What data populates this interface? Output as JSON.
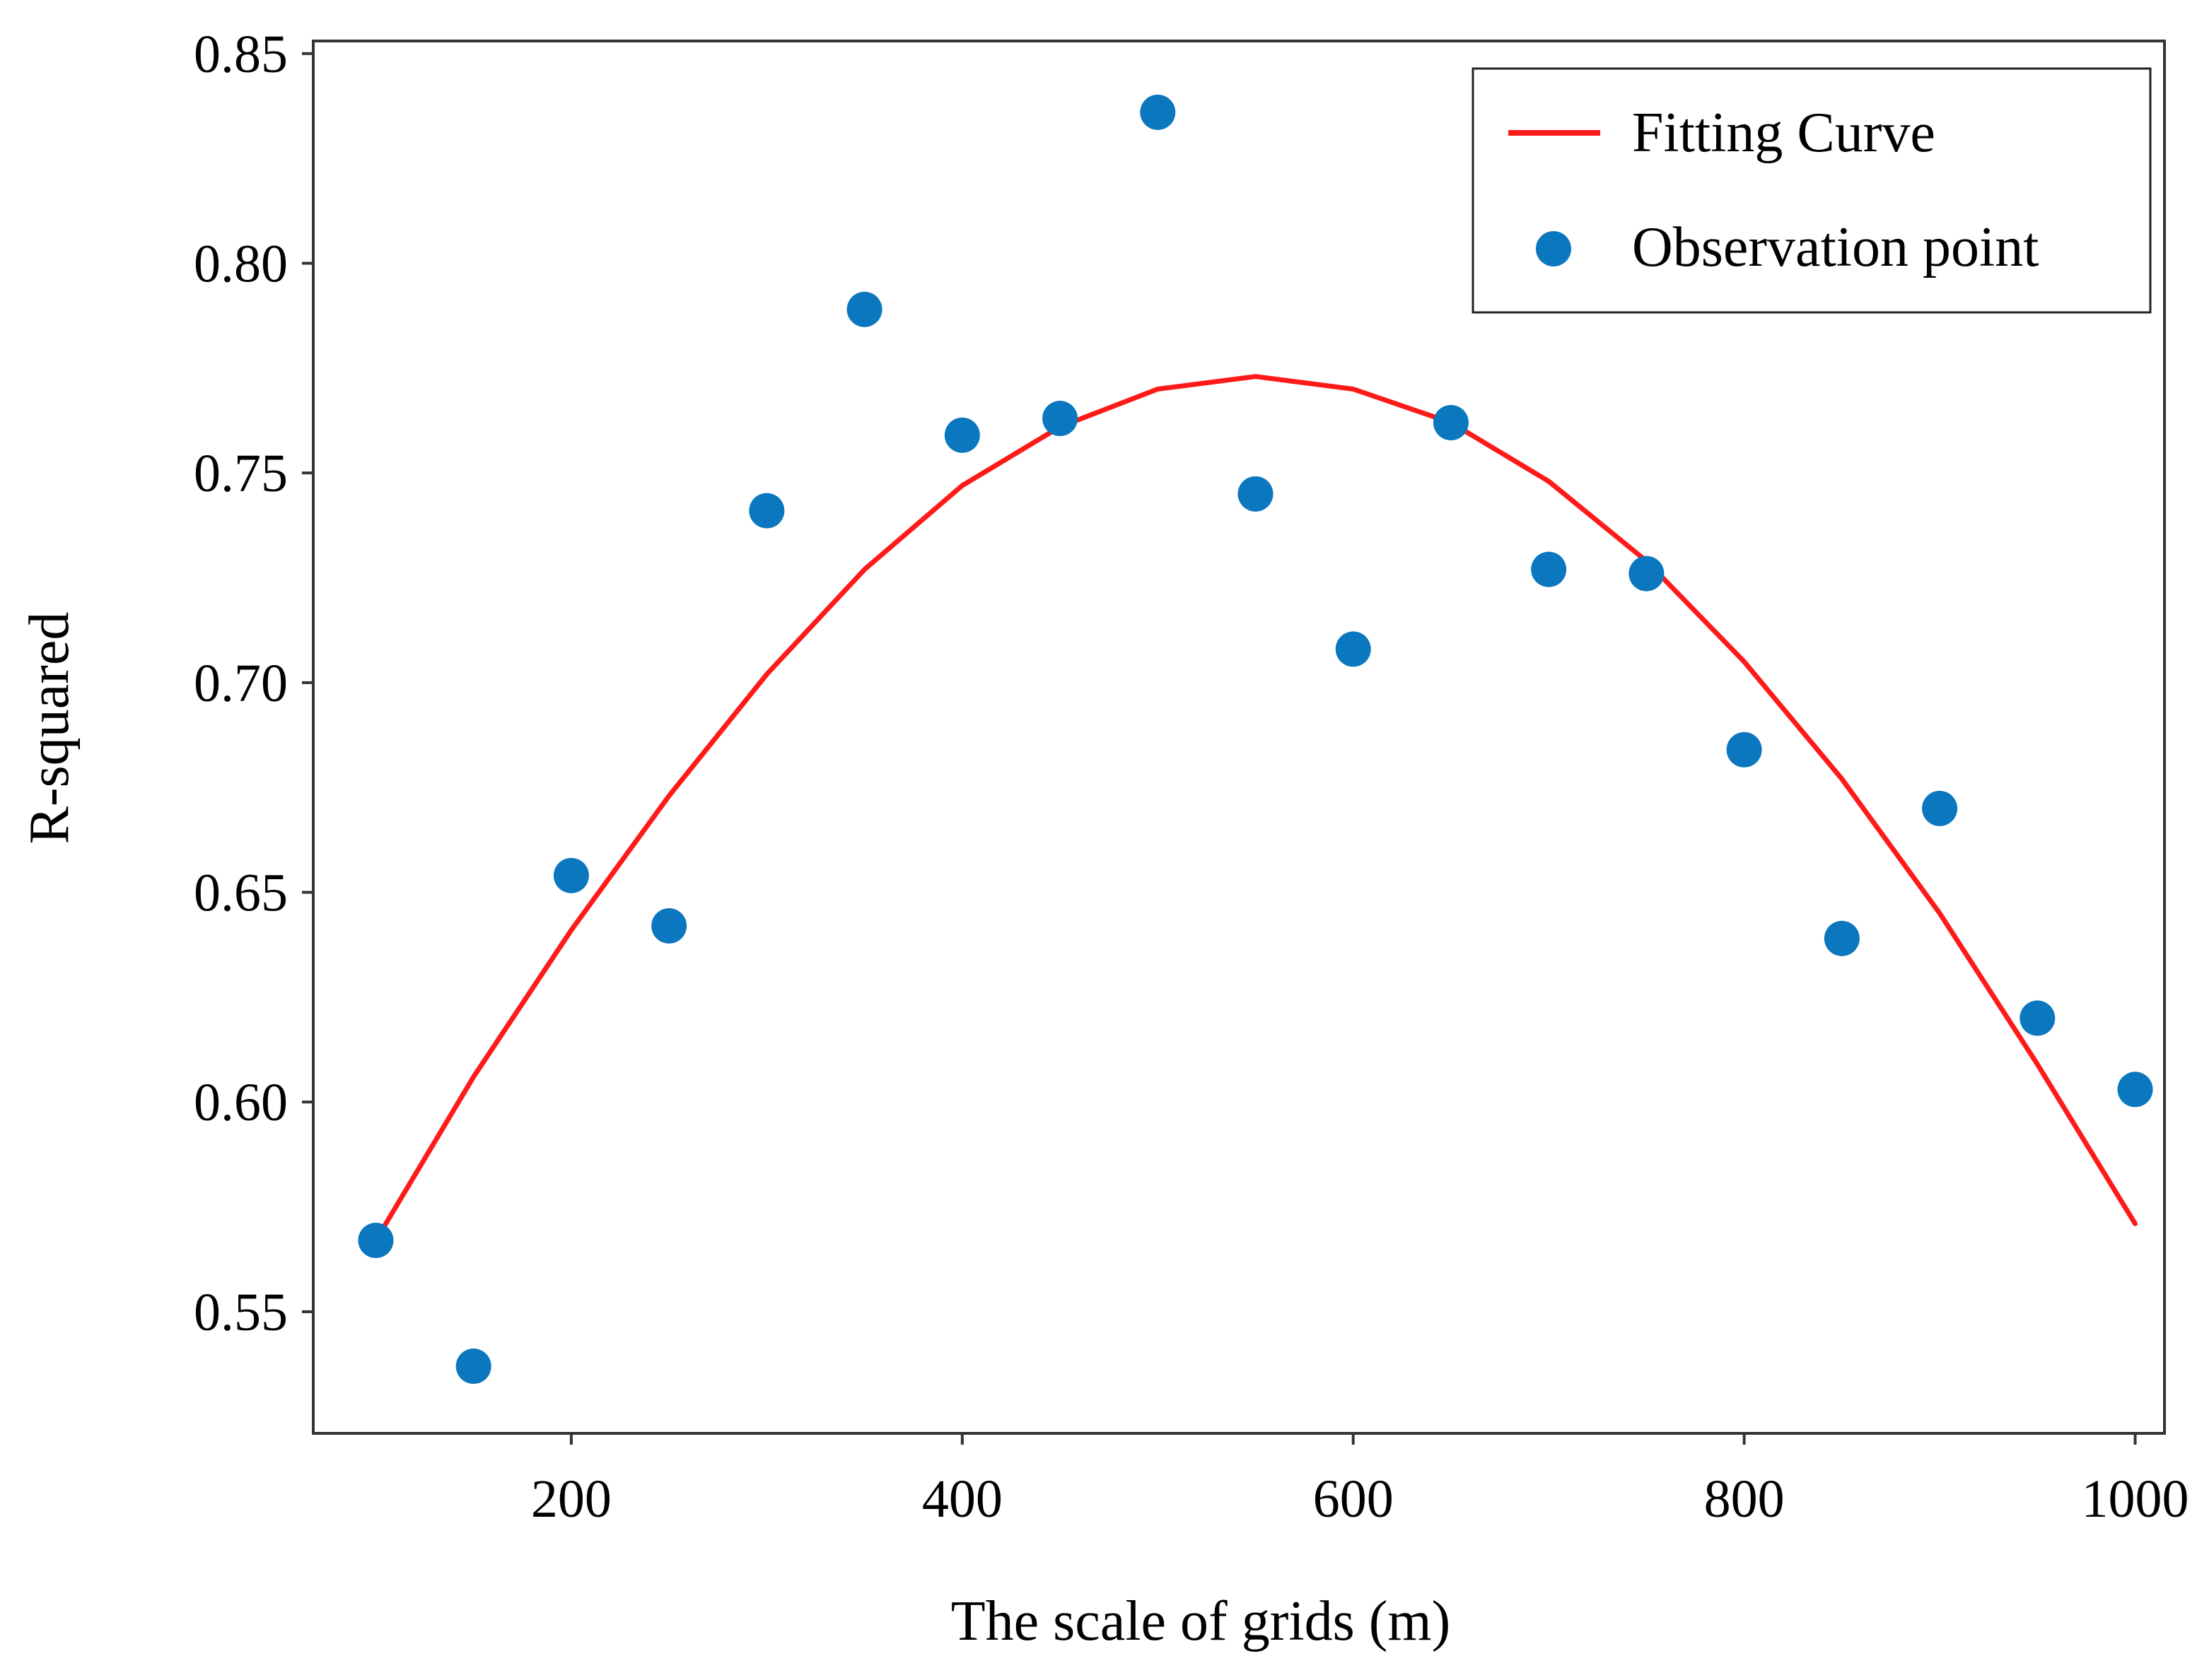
{
  "chart_data": {
    "type": "scatter",
    "xlabel": "The scale of grids (m)",
    "ylabel": "R-squared",
    "xlim": [
      68,
      1015
    ],
    "ylim": [
      0.521,
      0.853
    ],
    "x_ticks": [
      {
        "value": 200,
        "label": "200"
      },
      {
        "value": 400,
        "label": "400"
      },
      {
        "value": 600,
        "label": "600"
      },
      {
        "value": 800,
        "label": "800"
      },
      {
        "value": 1000,
        "label": "1000"
      }
    ],
    "y_ticks": [
      {
        "value": 0.55,
        "label": "0.55"
      },
      {
        "value": 0.6,
        "label": "0.60"
      },
      {
        "value": 0.65,
        "label": "0.65"
      },
      {
        "value": 0.7,
        "label": "0.70"
      },
      {
        "value": 0.75,
        "label": "0.75"
      },
      {
        "value": 0.8,
        "label": "0.80"
      },
      {
        "value": 0.85,
        "label": "0.85"
      }
    ],
    "grid": false,
    "legend_position": "top-right",
    "series": [
      {
        "name": "Fitting Curve",
        "kind": "line",
        "color": "#ff1a1a",
        "x": [
          100,
          150,
          200,
          250,
          300,
          350,
          400,
          450,
          500,
          550,
          600,
          650,
          700,
          750,
          800,
          850,
          900,
          950,
          1000
        ],
        "y": [
          0.567,
          0.606,
          0.641,
          0.673,
          0.702,
          0.727,
          0.747,
          0.761,
          0.77,
          0.773,
          0.77,
          0.762,
          0.748,
          0.729,
          0.705,
          0.677,
          0.645,
          0.609,
          0.571
        ]
      },
      {
        "name": "Observation point",
        "kind": "scatter",
        "color": "#0a77be",
        "x": [
          100,
          150,
          200,
          250,
          300,
          350,
          400,
          450,
          500,
          550,
          600,
          650,
          700,
          750,
          800,
          850,
          900,
          950,
          1000
        ],
        "y": [
          0.567,
          0.537,
          0.654,
          0.642,
          0.741,
          0.789,
          0.759,
          0.763,
          0.836,
          0.745,
          0.708,
          0.762,
          0.727,
          0.726,
          0.684,
          0.639,
          0.67,
          0.62,
          0.603
        ]
      }
    ]
  }
}
